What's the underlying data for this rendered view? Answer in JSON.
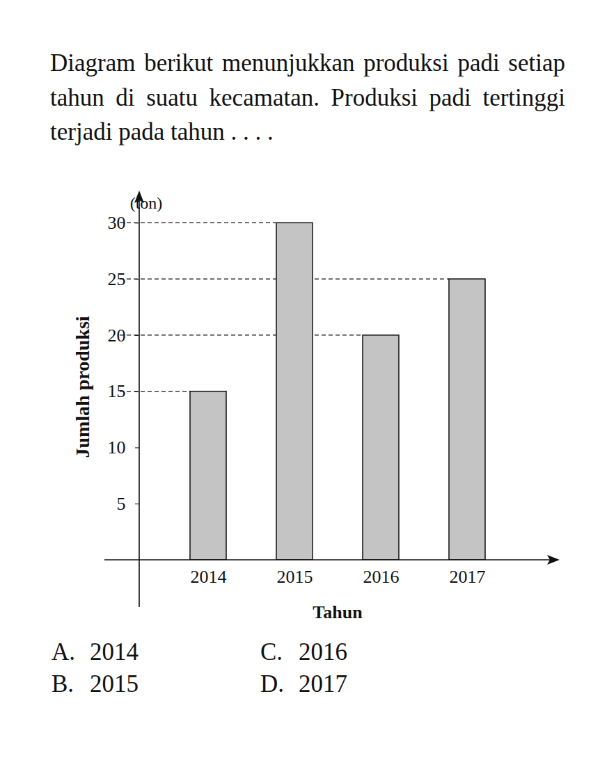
{
  "question": "Diagram berikut menunjukkan produksi padi setiap tahun di suatu kecamatan. Produksi padi tertinggi terjadi pada tahun . . . .",
  "options": [
    {
      "label": "A.",
      "text": "2014"
    },
    {
      "label": "B.",
      "text": "2015"
    },
    {
      "label": "C.",
      "text": "2016"
    },
    {
      "label": "D.",
      "text": "2017"
    }
  ],
  "chart_data": {
    "type": "bar",
    "categories": [
      "2014",
      "2015",
      "2016",
      "2017"
    ],
    "values": [
      15,
      30,
      20,
      25
    ],
    "x_label": "Tahun",
    "y_label": "Jumlah produksi",
    "y_unit": "(ton)",
    "ylim": [
      0,
      32
    ],
    "yticks": [
      5,
      10,
      15,
      20,
      25,
      30
    ],
    "color": "#c4c4c4"
  }
}
